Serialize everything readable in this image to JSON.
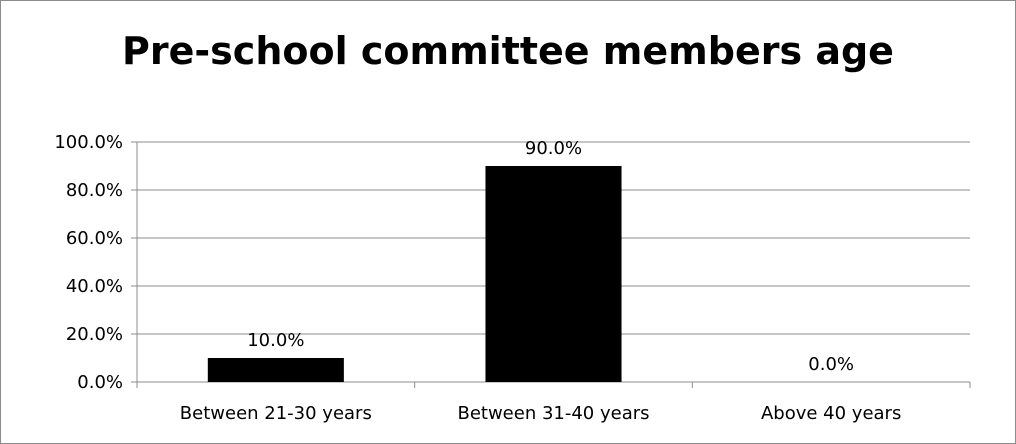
{
  "chart_data": {
    "type": "bar",
    "title": "Pre-school committee members age",
    "xlabel": "",
    "ylabel": "",
    "categories": [
      "Between 21-30 years",
      "Between 31-40 years",
      "Above 40 years"
    ],
    "values": [
      10.0,
      90.0,
      0.0
    ],
    "data_labels": [
      "10.0%",
      "90.0%",
      "0.0%"
    ],
    "ylim": [
      0,
      100
    ],
    "yticks": [
      0,
      20,
      40,
      60,
      80,
      100
    ],
    "ytick_labels": [
      "0.0%",
      "20.0%",
      "40.0%",
      "60.0%",
      "80.0%",
      "100.0%"
    ],
    "grid": true,
    "legend": "none",
    "bar_color": "#000000",
    "grid_color": "#8c8c8c"
  }
}
